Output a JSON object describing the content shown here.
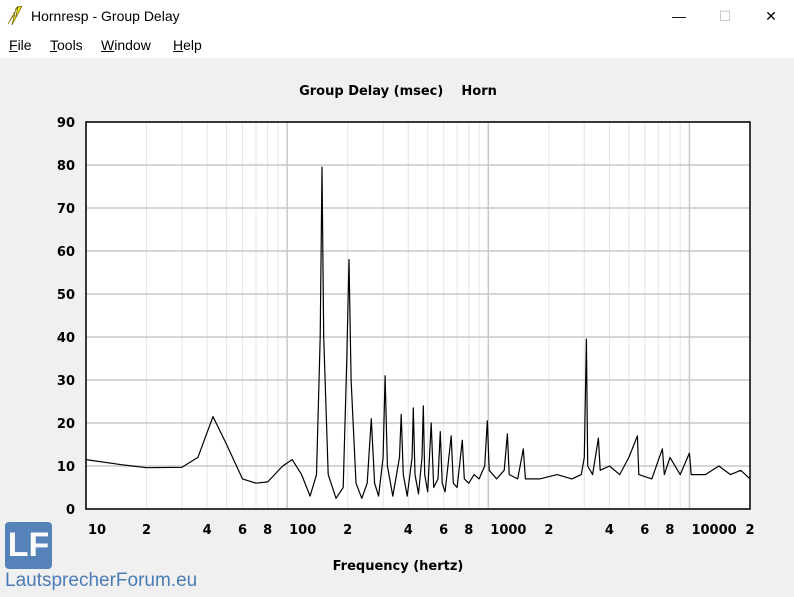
{
  "window": {
    "title": "Hornresp - Group Delay",
    "minimize": "—",
    "maximize": "☐",
    "close": "✕",
    "icon": "lightning-icon"
  },
  "menu": [
    {
      "label": "File",
      "key": "F",
      "rest": "ile"
    },
    {
      "label": "Tools",
      "key": "T",
      "rest": "ools"
    },
    {
      "label": "Window",
      "key": "W",
      "rest": "indow"
    },
    {
      "label": "Help",
      "key": "H",
      "rest": "elp"
    }
  ],
  "watermark": {
    "logo": "LF",
    "text": "LautsprecherForum.eu"
  },
  "chart_data": {
    "type": "line",
    "title": "Group Delay (msec)    Horn",
    "xlabel": "Frequency (hertz)",
    "ylabel": "",
    "xscale": "log",
    "xlim": [
      10,
      20000
    ],
    "ylim": [
      0,
      90
    ],
    "yticks": [
      0,
      10,
      20,
      30,
      40,
      50,
      60,
      70,
      80,
      90
    ],
    "xticks": [
      {
        "v": 10,
        "t": "10"
      },
      {
        "v": 20,
        "t": "2"
      },
      {
        "v": 40,
        "t": "4"
      },
      {
        "v": 60,
        "t": "6"
      },
      {
        "v": 80,
        "t": "8"
      },
      {
        "v": 100,
        "t": "100"
      },
      {
        "v": 200,
        "t": "2"
      },
      {
        "v": 400,
        "t": "4"
      },
      {
        "v": 600,
        "t": "6"
      },
      {
        "v": 800,
        "t": "8"
      },
      {
        "v": 1000,
        "t": "1000"
      },
      {
        "v": 2000,
        "t": "2"
      },
      {
        "v": 4000,
        "t": "4"
      },
      {
        "v": 6000,
        "t": "6"
      },
      {
        "v": 8000,
        "t": "8"
      },
      {
        "v": 10000,
        "t": "10000"
      },
      {
        "v": 20000,
        "t": "2"
      }
    ],
    "grid": true,
    "color": "#000000",
    "points": [
      [
        10,
        11.5
      ],
      [
        15,
        10.3
      ],
      [
        20,
        9.6
      ],
      [
        30,
        9.7
      ],
      [
        36,
        12
      ],
      [
        42.8,
        21.5
      ],
      [
        50,
        15
      ],
      [
        60,
        7
      ],
      [
        70,
        6
      ],
      [
        80,
        6.3
      ],
      [
        95,
        10
      ],
      [
        106,
        11.5
      ],
      [
        118,
        8
      ],
      [
        130,
        3
      ],
      [
        140,
        8
      ],
      [
        146,
        40
      ],
      [
        149,
        79.5
      ],
      [
        152,
        40
      ],
      [
        160,
        8
      ],
      [
        175,
        2.5
      ],
      [
        190,
        5
      ],
      [
        198,
        35
      ],
      [
        203,
        58
      ],
      [
        208,
        30
      ],
      [
        220,
        6
      ],
      [
        235,
        2.5
      ],
      [
        250,
        6
      ],
      [
        262,
        21
      ],
      [
        272,
        6
      ],
      [
        285,
        3
      ],
      [
        300,
        12
      ],
      [
        307,
        31
      ],
      [
        315,
        10
      ],
      [
        335,
        3
      ],
      [
        362,
        12
      ],
      [
        369,
        22
      ],
      [
        378,
        8
      ],
      [
        395,
        3
      ],
      [
        418,
        12
      ],
      [
        424,
        23.5
      ],
      [
        432,
        8
      ],
      [
        450,
        3.5
      ],
      [
        468,
        12
      ],
      [
        475,
        24
      ],
      [
        483,
        8
      ],
      [
        500,
        4
      ],
      [
        520,
        20
      ],
      [
        535,
        5
      ],
      [
        562,
        7
      ],
      [
        577,
        18
      ],
      [
        590,
        6
      ],
      [
        610,
        4
      ],
      [
        654,
        17
      ],
      [
        670,
        6
      ],
      [
        700,
        5
      ],
      [
        743,
        16
      ],
      [
        760,
        7
      ],
      [
        800,
        6
      ],
      [
        850,
        8
      ],
      [
        900,
        7
      ],
      [
        960,
        10
      ],
      [
        989,
        20.5
      ],
      [
        1010,
        9
      ],
      [
        1100,
        7
      ],
      [
        1200,
        9
      ],
      [
        1244,
        17.5
      ],
      [
        1270,
        8
      ],
      [
        1400,
        7
      ],
      [
        1493,
        14
      ],
      [
        1530,
        7
      ],
      [
        1800,
        7
      ],
      [
        2200,
        8
      ],
      [
        2600,
        7
      ],
      [
        2900,
        8
      ],
      [
        3000,
        12
      ],
      [
        3075,
        39.5
      ],
      [
        3120,
        10
      ],
      [
        3300,
        8
      ],
      [
        3526,
        16.5
      ],
      [
        3600,
        9
      ],
      [
        4000,
        10
      ],
      [
        4500,
        8
      ],
      [
        5000,
        12
      ],
      [
        5510,
        17
      ],
      [
        5600,
        8
      ],
      [
        6500,
        7
      ],
      [
        7340,
        14
      ],
      [
        7500,
        8
      ],
      [
        8000,
        12
      ],
      [
        9000,
        8
      ],
      [
        10000,
        13
      ],
      [
        10200,
        8
      ],
      [
        12000,
        8
      ],
      [
        14000,
        10
      ],
      [
        16000,
        8
      ],
      [
        18000,
        9
      ],
      [
        20000,
        7
      ]
    ]
  }
}
